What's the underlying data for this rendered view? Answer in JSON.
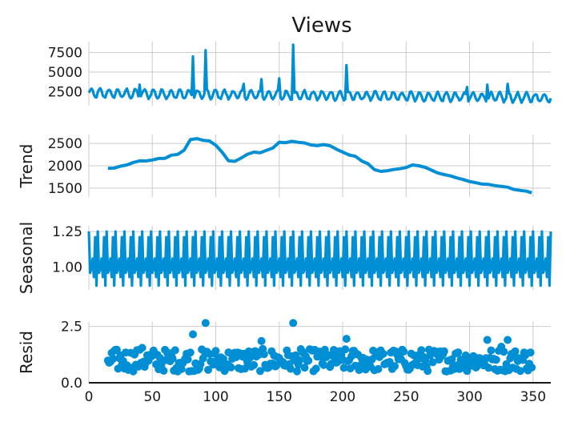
{
  "chart_data": [
    {
      "type": "line",
      "title": "Views",
      "ylabel": "",
      "xlim": [
        0,
        364
      ],
      "ylim": [
        700,
        8900
      ],
      "yticks": [
        2500,
        5000,
        7500
      ],
      "yticklabels": [
        "2500",
        "5000",
        "7500"
      ],
      "grid": true,
      "series": [
        {
          "color": "#008fd5",
          "base_level": 2300,
          "weekly_amplitude": 700,
          "spikes": [
            {
              "x": 40,
              "y": 3400
            },
            {
              "x": 82,
              "y": 7000
            },
            {
              "x": 92,
              "y": 7800
            },
            {
              "x": 122,
              "y": 3500
            },
            {
              "x": 136,
              "y": 4100
            },
            {
              "x": 150,
              "y": 4200
            },
            {
              "x": 161,
              "y": 8500
            },
            {
              "x": 203,
              "y": 5900
            },
            {
              "x": 298,
              "y": 3100
            },
            {
              "x": 314,
              "y": 3400
            },
            {
              "x": 330,
              "y": 3500
            }
          ]
        }
      ]
    },
    {
      "type": "line",
      "title": "",
      "ylabel": "Trend",
      "xlim": [
        0,
        364
      ],
      "ylim": [
        1300,
        2700
      ],
      "yticks": [
        1500,
        2000,
        2500
      ],
      "yticklabels": [
        "1500",
        "2000",
        "2500"
      ],
      "grid": true,
      "series": [
        {
          "color": "#008fd5",
          "points": [
            [
              15,
              1950
            ],
            [
              20,
              1960
            ],
            [
              25,
              2000
            ],
            [
              30,
              2030
            ],
            [
              35,
              2080
            ],
            [
              40,
              2100
            ],
            [
              45,
              2120
            ],
            [
              50,
              2130
            ],
            [
              55,
              2150
            ],
            [
              60,
              2180
            ],
            [
              65,
              2230
            ],
            [
              70,
              2250
            ],
            [
              75,
              2350
            ],
            [
              80,
              2600
            ],
            [
              85,
              2620
            ],
            [
              90,
              2580
            ],
            [
              95,
              2550
            ],
            [
              100,
              2450
            ],
            [
              105,
              2300
            ],
            [
              110,
              2120
            ],
            [
              115,
              2100
            ],
            [
              120,
              2180
            ],
            [
              125,
              2250
            ],
            [
              130,
              2320
            ],
            [
              135,
              2300
            ],
            [
              140,
              2350
            ],
            [
              145,
              2400
            ],
            [
              150,
              2530
            ],
            [
              155,
              2520
            ],
            [
              160,
              2560
            ],
            [
              165,
              2540
            ],
            [
              170,
              2500
            ],
            [
              175,
              2480
            ],
            [
              180,
              2450
            ],
            [
              185,
              2460
            ],
            [
              190,
              2440
            ],
            [
              195,
              2380
            ],
            [
              200,
              2320
            ],
            [
              205,
              2250
            ],
            [
              210,
              2200
            ],
            [
              215,
              2100
            ],
            [
              220,
              2050
            ],
            [
              225,
              1900
            ],
            [
              230,
              1880
            ],
            [
              235,
              1900
            ],
            [
              240,
              1920
            ],
            [
              245,
              1930
            ],
            [
              250,
              1960
            ],
            [
              255,
              2020
            ],
            [
              260,
              2000
            ],
            [
              265,
              1960
            ],
            [
              270,
              1900
            ],
            [
              275,
              1850
            ],
            [
              280,
              1800
            ],
            [
              285,
              1760
            ],
            [
              290,
              1720
            ],
            [
              295,
              1680
            ],
            [
              300,
              1650
            ],
            [
              305,
              1620
            ],
            [
              310,
              1600
            ],
            [
              315,
              1580
            ],
            [
              320,
              1560
            ],
            [
              325,
              1540
            ],
            [
              330,
              1510
            ],
            [
              335,
              1470
            ],
            [
              340,
              1450
            ],
            [
              345,
              1420
            ],
            [
              349,
              1380
            ]
          ]
        }
      ]
    },
    {
      "type": "line",
      "title": "",
      "ylabel": "Seasonal",
      "xlim": [
        0,
        364
      ],
      "ylim": [
        0.84,
        1.29
      ],
      "yticks": [
        1.0,
        1.25
      ],
      "yticklabels": [
        "1.00",
        "1.25"
      ],
      "grid": true,
      "series": [
        {
          "color": "#008fd5",
          "period": 7,
          "pattern": [
            1.25,
            0.96,
            0.99,
            1.06,
            0.93,
            1.21,
            0.87
          ]
        }
      ]
    },
    {
      "type": "scatter",
      "title": "",
      "ylabel": "Resid",
      "xlabel": "",
      "xlim": [
        0,
        364
      ],
      "ylim": [
        0,
        2.7
      ],
      "yticks": [
        0.0,
        2.5
      ],
      "yticklabels": [
        "0.0",
        "2.5"
      ],
      "xticks": [
        0,
        50,
        100,
        150,
        200,
        250,
        300,
        350
      ],
      "xticklabels": [
        "0",
        "50",
        "100",
        "150",
        "200",
        "250",
        "300",
        "350"
      ],
      "grid": true,
      "series": [
        {
          "color": "#008fd5",
          "base_range": [
            0.5,
            1.5
          ],
          "outliers": [
            {
              "x": 38,
              "y": 1.45
            },
            {
              "x": 42,
              "y": 1.55
            },
            {
              "x": 82,
              "y": 2.15
            },
            {
              "x": 92,
              "y": 2.65
            },
            {
              "x": 136,
              "y": 1.85
            },
            {
              "x": 161,
              "y": 2.65
            },
            {
              "x": 203,
              "y": 1.95
            },
            {
              "x": 314,
              "y": 1.9
            },
            {
              "x": 325,
              "y": 1.6
            },
            {
              "x": 330,
              "y": 1.9
            }
          ]
        }
      ]
    }
  ]
}
